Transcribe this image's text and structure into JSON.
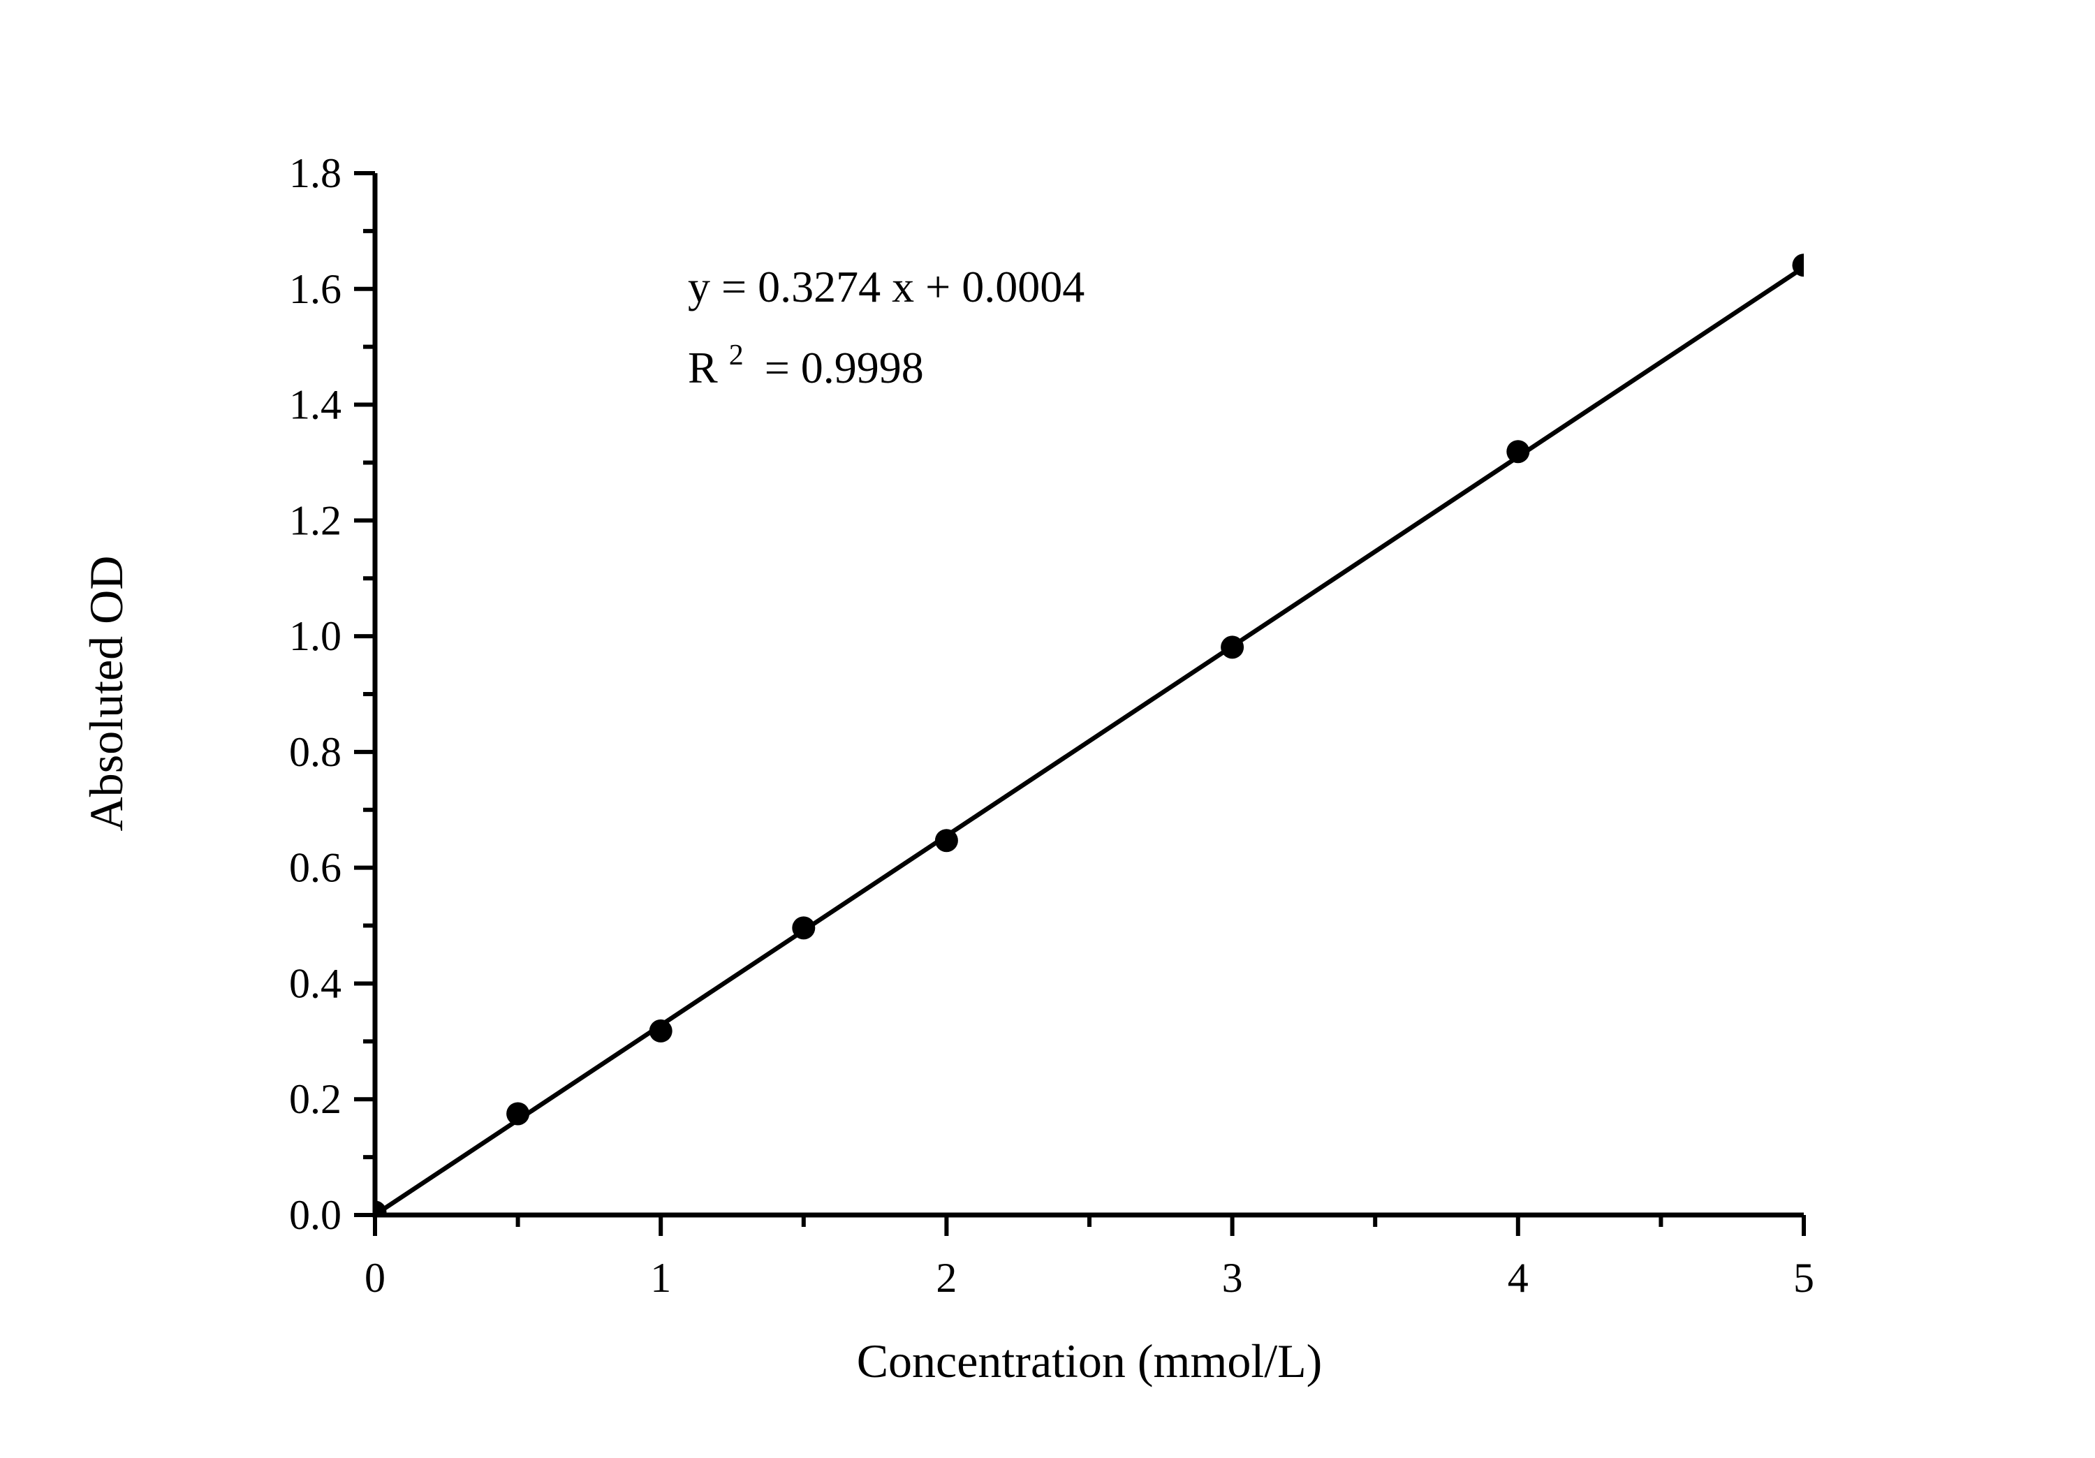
{
  "chart_data": {
    "type": "scatter",
    "title": "",
    "xlabel": "Concentration (mmol/L)",
    "ylabel": "Absoluted OD",
    "x": [
      0,
      0.5,
      1,
      1.5,
      2,
      3,
      4,
      5
    ],
    "y": [
      0.005,
      0.175,
      0.318,
      0.496,
      0.647,
      0.981,
      1.319,
      1.641
    ],
    "fit_line": {
      "slope": 0.3274,
      "intercept": 0.0004,
      "x_start": 0,
      "x_end": 5
    },
    "xlim": [
      0,
      5
    ],
    "ylim": [
      0,
      1.8
    ],
    "x_major_ticks": [
      0,
      1,
      2,
      3,
      4,
      5
    ],
    "x_tick_labels": [
      "0",
      "1",
      "2",
      "3",
      "4",
      "5"
    ],
    "x_minor_ticks": [
      0.5,
      1.5,
      2.5,
      3.5,
      4.5
    ],
    "y_major_ticks": [
      0.0,
      0.2,
      0.4,
      0.6,
      0.8,
      1.0,
      1.2,
      1.4,
      1.6,
      1.8
    ],
    "y_tick_labels": [
      "0.0",
      "0.2",
      "0.4",
      "0.6",
      "0.8",
      "1.0",
      "1.2",
      "1.4",
      "1.6",
      "1.8"
    ],
    "y_minor_ticks": [
      0.1,
      0.3,
      0.5,
      0.7,
      0.9,
      1.1,
      1.3,
      1.5,
      1.7
    ],
    "annotation": {
      "equation": "y = 0.3274 x + 0.0004",
      "r2_base": "R",
      "r2_sup": "2",
      "r2_value": "= 0.9998"
    },
    "grid": false,
    "legend": "none",
    "marker_color": "#000000",
    "line_color": "#000000",
    "axis_color": "#000000",
    "background": "#ffffff"
  }
}
